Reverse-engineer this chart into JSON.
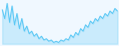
{
  "values": [
    45,
    38,
    50,
    35,
    48,
    33,
    42,
    30,
    38,
    28,
    32,
    26,
    28,
    24,
    26,
    22,
    24,
    21,
    22,
    20,
    21,
    19,
    20,
    19,
    21,
    20,
    22,
    21,
    25,
    23,
    27,
    25,
    30,
    28,
    33,
    31,
    36,
    34,
    38,
    36,
    40,
    38,
    42,
    40,
    44,
    42,
    46,
    44
  ],
  "line_color": "#5bc8f5",
  "fill_color": "#5bc8f5",
  "background_color": "#f0f8ff",
  "linewidth": 0.7,
  "fill_alpha": 0.25
}
